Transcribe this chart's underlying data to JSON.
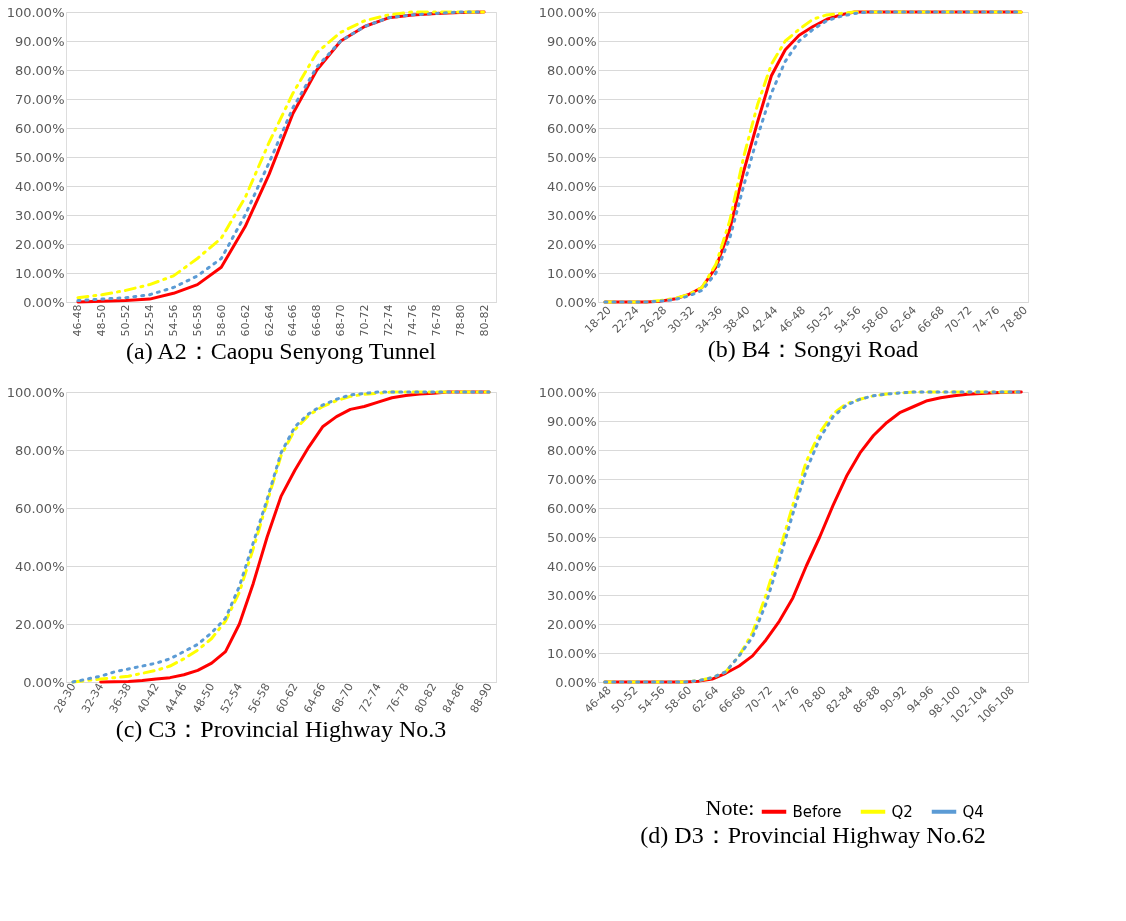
{
  "chart_data": [
    {
      "type": "line",
      "title": "(a) A2：Caopu Senyong Tunnel",
      "categories": [
        "46-48",
        "48-50",
        "50-52",
        "52-54",
        "54-56",
        "56-58",
        "58-60",
        "60-62",
        "62-64",
        "64-66",
        "66-68",
        "68-70",
        "70-72",
        "72-74",
        "74-76",
        "76-78",
        "78-80",
        "80-82"
      ],
      "series": [
        {
          "color": "#ff0000",
          "line_style": "solid",
          "values": [
            0,
            0.3,
            0.5,
            1,
            3,
            6,
            12,
            26,
            44,
            65,
            80,
            90,
            95,
            98,
            99,
            99.5,
            99.8,
            100
          ]
        },
        {
          "color": "#ffff00",
          "line_style": "dashed",
          "values": [
            1.5,
            2.5,
            4,
            6,
            9,
            15,
            22,
            36,
            55,
            72,
            86,
            93,
            97,
            99,
            100,
            100,
            100,
            100
          ]
        },
        {
          "color": "#5b9bd5",
          "line_style": "dotted",
          "values": [
            0.5,
            1,
            1.5,
            2.5,
            5,
            9,
            15,
            30,
            48,
            67,
            81,
            90,
            95,
            98,
            99,
            99.5,
            100,
            100
          ]
        }
      ],
      "ylim": [
        0,
        100
      ],
      "yticks": [
        {
          "value": 0,
          "label": "0.00%"
        },
        {
          "value": 10,
          "label": "10.00%"
        },
        {
          "value": 20,
          "label": "20.00%"
        },
        {
          "value": 30,
          "label": "30.00%"
        },
        {
          "value": 40,
          "label": "40.00%"
        },
        {
          "value": 50,
          "label": "50.00%"
        },
        {
          "value": 60,
          "label": "60.00%"
        },
        {
          "value": 70,
          "label": "70.00%"
        },
        {
          "value": 80,
          "label": "80.00%"
        },
        {
          "value": 90,
          "label": "90.00%"
        },
        {
          "value": 100,
          "label": "100.00%"
        }
      ],
      "grid": "y",
      "legend": false
    },
    {
      "type": "line",
      "title": "(b) B4：Songyi Road",
      "categories": [
        "18-20",
        null,
        "22-24",
        null,
        "26-28",
        null,
        "30-32",
        null,
        "34-36",
        null,
        "38-40",
        null,
        "42-44",
        null,
        "46-48",
        null,
        "50-52",
        null,
        "54-56",
        null,
        "58-60",
        null,
        "62-64",
        null,
        "66-68",
        null,
        "70-72",
        null,
        "74-76",
        null,
        "78-80"
      ],
      "series": [
        {
          "color": "#ff0000",
          "line_style": "solid",
          "values": [
            0,
            0,
            0,
            0,
            0.3,
            1,
            2.5,
            5,
            12,
            25,
            45,
            62,
            78,
            87,
            92,
            95,
            97.5,
            99,
            100,
            100,
            100,
            100,
            100,
            100,
            100,
            100,
            100,
            100,
            100,
            100,
            100
          ]
        },
        {
          "color": "#ffff00",
          "line_style": "dashed",
          "values": [
            0,
            0,
            0,
            0,
            0.5,
            1.2,
            2.5,
            5,
            13,
            28,
            50,
            68,
            82,
            90,
            94,
            97.5,
            99,
            99.5,
            100,
            100,
            100,
            100,
            100,
            100,
            100,
            100,
            100,
            100,
            100,
            100,
            100
          ]
        },
        {
          "color": "#5b9bd5",
          "line_style": "dotted",
          "values": [
            0,
            0,
            0,
            0,
            0.3,
            0.8,
            2,
            4,
            10,
            22,
            40,
            57,
            72,
            83,
            90,
            94,
            97,
            98.5,
            99.5,
            100,
            100,
            100,
            100,
            100,
            100,
            100,
            100,
            100,
            100,
            100,
            100
          ]
        }
      ],
      "ylim": [
        0,
        100
      ],
      "yticks": [
        {
          "value": 0,
          "label": "0.00%"
        },
        {
          "value": 10,
          "label": "10.00%"
        },
        {
          "value": 20,
          "label": "20.00%"
        },
        {
          "value": 30,
          "label": "30.00%"
        },
        {
          "value": 40,
          "label": "40.00%"
        },
        {
          "value": 50,
          "label": "50.00%"
        },
        {
          "value": 60,
          "label": "60.00%"
        },
        {
          "value": 70,
          "label": "70.00%"
        },
        {
          "value": 80,
          "label": "80.00%"
        },
        {
          "value": 90,
          "label": "90.00%"
        },
        {
          "value": 100,
          "label": "100.00%"
        }
      ],
      "grid": "y",
      "legend": false
    },
    {
      "type": "line",
      "title": "(c) C3：Provincial Highway No.3",
      "categories": [
        "28-30",
        null,
        "32-34",
        null,
        "36-38",
        null,
        "40-42",
        null,
        "44-46",
        null,
        "48-50",
        null,
        "52-54",
        null,
        "56-58",
        null,
        "60-62",
        null,
        "64-66",
        null,
        "68-70",
        null,
        "72-74",
        null,
        "76-78",
        null,
        "80-82",
        null,
        "84-86",
        null,
        "88-90"
      ],
      "series": [
        {
          "color": "#ff0000",
          "line_style": "solid",
          "values": [
            null,
            null,
            0,
            0.1,
            0.2,
            0.5,
            1,
            1.5,
            2.5,
            4,
            6.5,
            10.5,
            20,
            34,
            50,
            64,
            73,
            81,
            88,
            91.5,
            94,
            95,
            96.5,
            98,
            98.8,
            99.3,
            99.6,
            100,
            100,
            100,
            100
          ]
        },
        {
          "color": "#ffff00",
          "line_style": "dashed",
          "values": [
            0,
            0.5,
            1,
            1.5,
            2,
            3,
            4,
            5.5,
            8,
            11,
            15,
            21,
            31,
            46,
            62,
            78,
            87,
            92,
            95,
            97,
            98.5,
            99.2,
            99.6,
            100,
            100,
            100,
            100,
            100,
            100,
            100,
            100
          ]
        },
        {
          "color": "#5b9bd5",
          "line_style": "dotted",
          "values": [
            0,
            1,
            2,
            3.5,
            4.5,
            5.5,
            6.5,
            8,
            10.5,
            13,
            17,
            22,
            33,
            48,
            63,
            79,
            88,
            92.5,
            95.5,
            97.5,
            99,
            99.5,
            100,
            100,
            100,
            100,
            100,
            100,
            100,
            100,
            100
          ]
        }
      ],
      "ylim": [
        0,
        100
      ],
      "yticks": [
        {
          "value": 0,
          "label": "0.00%"
        },
        {
          "value": 20,
          "label": "20.00%"
        },
        {
          "value": 40,
          "label": "40.00%"
        },
        {
          "value": 60,
          "label": "60.00%"
        },
        {
          "value": 80,
          "label": "80.00%"
        },
        {
          "value": 100,
          "label": "100.00%"
        }
      ],
      "grid": "y",
      "legend": false
    },
    {
      "type": "line",
      "title": "(d) D3：Provincial Highway No.62",
      "legend_title": "Note:",
      "categories": [
        "46-48",
        null,
        "50-52",
        null,
        "54-56",
        null,
        "58-60",
        null,
        "62-64",
        null,
        "66-68",
        null,
        "70-72",
        null,
        "74-76",
        null,
        "78-80",
        null,
        "82-84",
        null,
        "86-88",
        null,
        "90-92",
        null,
        "94-96",
        null,
        "98-100",
        null,
        "102-104",
        null,
        "106-108",
        null
      ],
      "series": [
        {
          "name": "Before",
          "color": "#ff0000",
          "line_style": "solid",
          "values": [
            0,
            0,
            0,
            0,
            0,
            0,
            0,
            0.3,
            1,
            3,
            5.5,
            9,
            14.5,
            21,
            29,
            40,
            50,
            61,
            71,
            79,
            85,
            89.5,
            93,
            95,
            97,
            98,
            98.7,
            99.2,
            99.5,
            99.7,
            99.9,
            100
          ]
        },
        {
          "name": "Q2",
          "color": "#ffff00",
          "line_style": "dashed",
          "values": [
            0,
            0,
            0,
            0,
            0,
            0,
            0,
            0.5,
            1.5,
            3.5,
            9,
            17,
            30,
            45,
            61,
            76,
            86,
            92.5,
            96,
            97.5,
            98.7,
            99.3,
            99.7,
            100,
            100,
            100,
            100,
            100,
            100,
            100,
            100,
            100
          ]
        },
        {
          "name": "Q4",
          "color": "#5b9bd5",
          "line_style": "dotted",
          "values": [
            0,
            0,
            0,
            0,
            0,
            0,
            0,
            0.5,
            1.5,
            3.5,
            9,
            15.5,
            27,
            42,
            58,
            73,
            84,
            91.5,
            95.5,
            97.5,
            98.7,
            99.3,
            99.7,
            100,
            100,
            100,
            100,
            100,
            100,
            100,
            100,
            100
          ]
        }
      ],
      "ylim": [
        0,
        100
      ],
      "yticks": [
        {
          "value": 0,
          "label": "0.00%"
        },
        {
          "value": 10,
          "label": "10.00%"
        },
        {
          "value": 20,
          "label": "20.00%"
        },
        {
          "value": 30,
          "label": "30.00%"
        },
        {
          "value": 40,
          "label": "40.00%"
        },
        {
          "value": 50,
          "label": "50.00%"
        },
        {
          "value": 60,
          "label": "60.00%"
        },
        {
          "value": 70,
          "label": "70.00%"
        },
        {
          "value": 80,
          "label": "80.00%"
        },
        {
          "value": 90,
          "label": "90.00%"
        },
        {
          "value": 100,
          "label": "100.00%"
        }
      ],
      "grid": "y",
      "legend": "bottom"
    }
  ]
}
